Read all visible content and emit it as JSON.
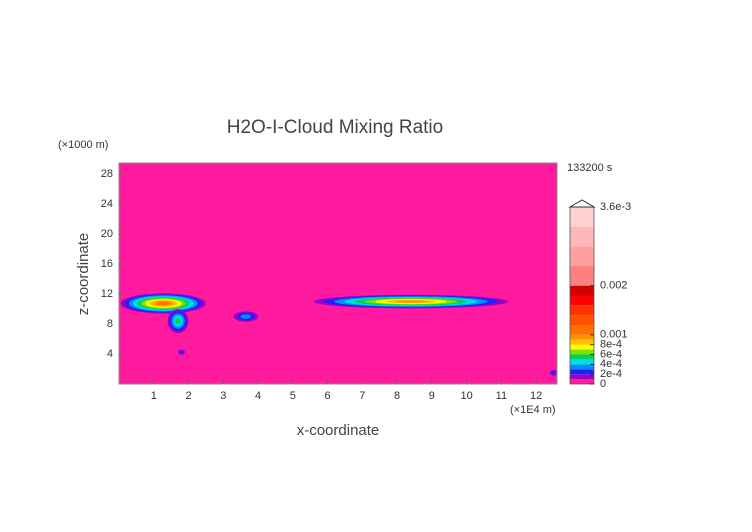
{
  "chart_data": {
    "type": "contour",
    "title": "H2O-I-Cloud Mixing Ratio",
    "x_label": "x-coordinate",
    "y_label": "z-coordinate",
    "x_unit": "(×1E4 m)",
    "y_unit": "(×1000 m)",
    "time": "133200 s",
    "xlim": [
      0,
      12.6
    ],
    "ylim": [
      0,
      29.5
    ],
    "xticks": [
      1,
      2,
      3,
      4,
      5,
      6,
      7,
      8,
      9,
      10,
      11,
      12
    ],
    "yticks": [
      4,
      8,
      12,
      16,
      20,
      24,
      28
    ],
    "colorbar": {
      "lim": [
        0,
        0.0036
      ],
      "levels": [
        0,
        0.0001,
        0.0002,
        0.0003,
        0.0004,
        0.0005,
        0.0006,
        0.0007,
        0.0008,
        0.0009,
        0.001,
        0.0012,
        0.0014,
        0.0016,
        0.0018,
        0.002,
        0.0024,
        0.0028,
        0.0032,
        0.0036
      ],
      "colors": [
        "#ff1aa0",
        "#9b00c8",
        "#2020ff",
        "#0090ff",
        "#00e0e0",
        "#00d060",
        "#80e000",
        "#ffff00",
        "#ffc000",
        "#ff9000",
        "#ff7000",
        "#ff5000",
        "#ff3000",
        "#ff0000",
        "#d00000",
        "#ff8080",
        "#ffa0a0",
        "#ffb8b8",
        "#ffd0d0"
      ],
      "ticks": [
        0,
        {
          "value": 0.0002,
          "label": "2e-4"
        },
        {
          "value": 0.0004,
          "label": "4e-4"
        },
        {
          "value": 0.0006,
          "label": "6e-4"
        },
        {
          "value": 0.0008,
          "label": "8e-4"
        },
        0.001,
        0.002,
        {
          "value": 0.0036,
          "label": "3.6e-3"
        }
      ]
    },
    "features": [
      {
        "x": [
          0.05,
          2.5
        ],
        "z": [
          9.4,
          12.1
        ],
        "peak": 0.0011
      },
      {
        "x": [
          1.4,
          2.0
        ],
        "z": [
          6.8,
          10.0
        ],
        "peak": 0.0005
      },
      {
        "x": [
          3.3,
          4.0
        ],
        "z": [
          8.3,
          9.7
        ],
        "peak": 0.0003
      },
      {
        "x": [
          5.6,
          11.2
        ],
        "z": [
          10.1,
          11.9
        ],
        "peak": 0.0009
      },
      {
        "x": [
          1.7,
          1.9
        ],
        "z": [
          3.9,
          4.6
        ],
        "peak": 0.0002
      },
      {
        "x": [
          12.4,
          12.6
        ],
        "z": [
          1.1,
          1.9
        ],
        "peak": 0.0002
      }
    ]
  }
}
